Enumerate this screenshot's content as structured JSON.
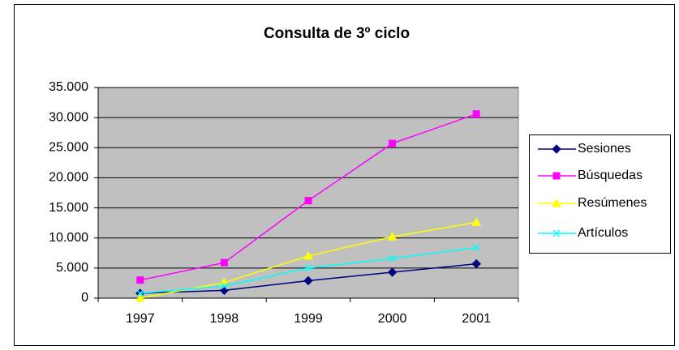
{
  "chart_data": {
    "type": "line",
    "title": "Consulta de 3º ciclo",
    "categories": [
      "1997",
      "1998",
      "1999",
      "2000",
      "2001"
    ],
    "series": [
      {
        "name": "Sesiones",
        "color": "#000080",
        "marker": "diamond",
        "values": [
          800,
          1300,
          2900,
          4300,
          5700
        ]
      },
      {
        "name": "Búsquedas",
        "color": "#ff00ff",
        "marker": "square",
        "values": [
          3000,
          5900,
          16200,
          25700,
          30600
        ]
      },
      {
        "name": "Resúmenes",
        "color": "#ffff00",
        "marker": "triangle",
        "values": [
          0,
          2600,
          7000,
          10200,
          12600
        ]
      },
      {
        "name": "Artículos",
        "color": "#00ffff",
        "marker": "x",
        "values": [
          800,
          2000,
          5000,
          6600,
          8400
        ]
      }
    ],
    "ylim": [
      0,
      35000
    ],
    "yticks": [
      0,
      {
        "value": 5000,
        "label": "5.000"
      },
      {
        "value": 10000,
        "label": "10.000"
      },
      {
        "value": 15000,
        "label": "15.000"
      },
      {
        "value": 20000,
        "label": "20.000"
      },
      {
        "value": 25000,
        "label": "25.000"
      },
      {
        "value": 30000,
        "label": "30.000"
      },
      {
        "value": 35000,
        "label": "35.000"
      }
    ],
    "grid": true,
    "legend": "right"
  }
}
